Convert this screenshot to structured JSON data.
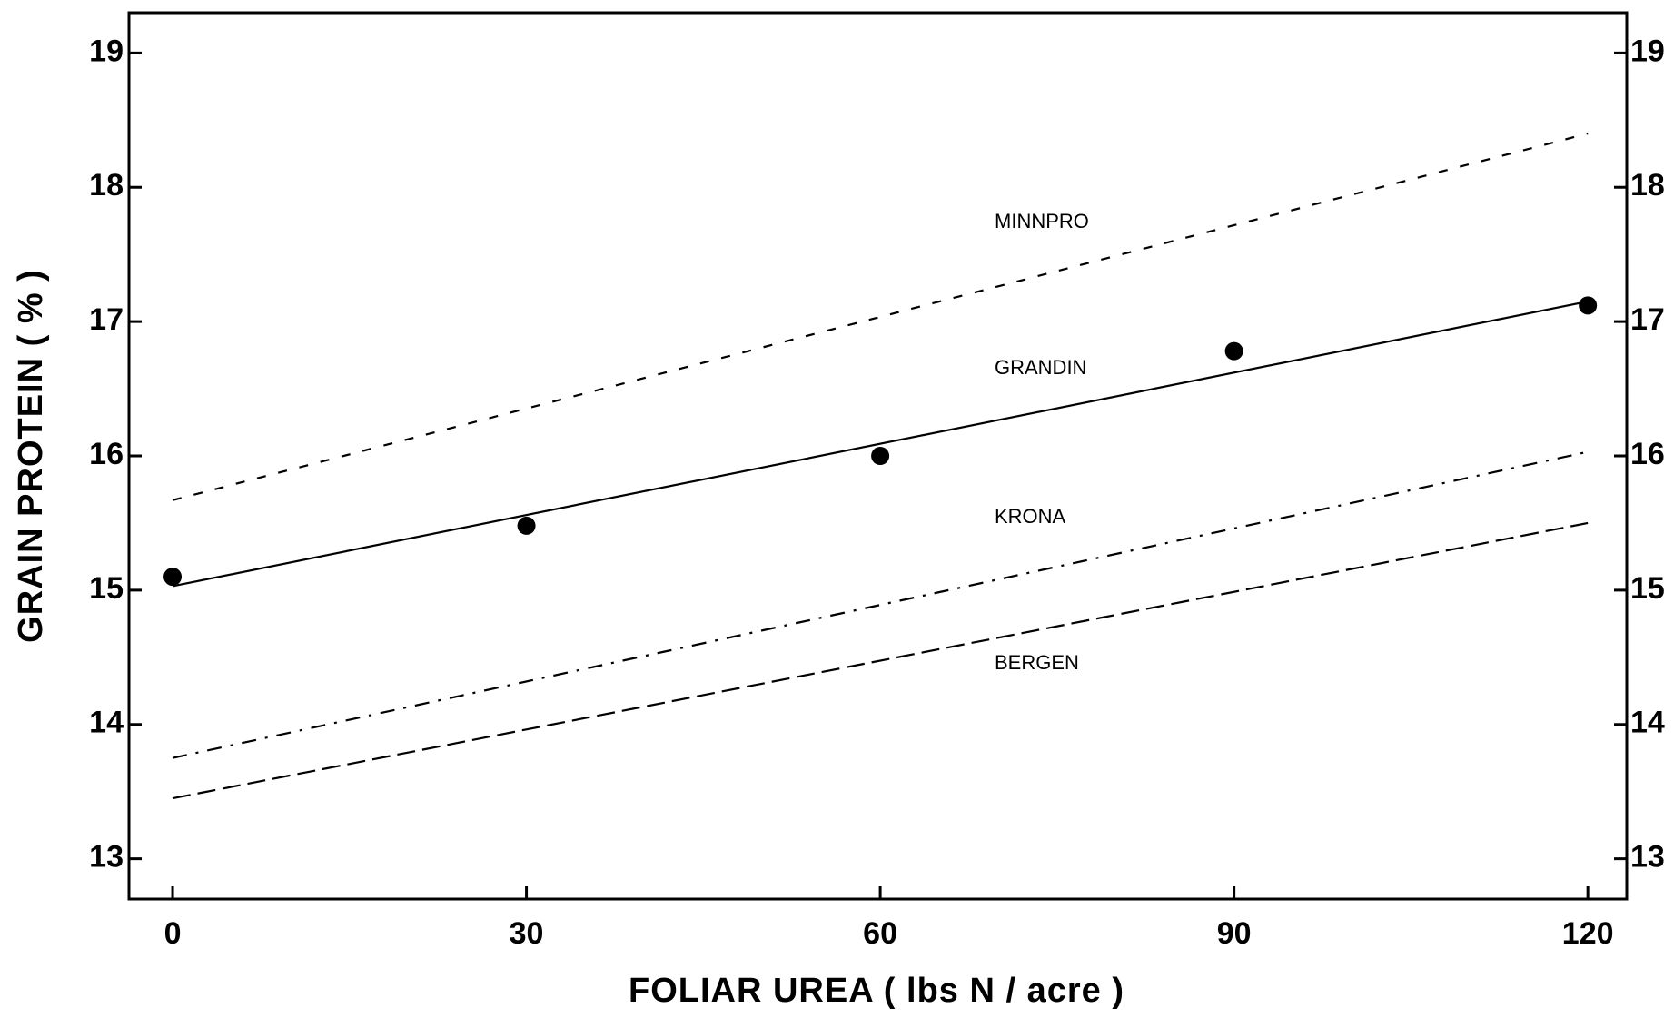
{
  "chart_data": {
    "type": "line",
    "x_label": "FOLIAR UREA ( lbs N / acre )",
    "y_label": "GRAIN PROTEIN ( % )",
    "xlim": [
      -3.7,
      123.3
    ],
    "xticks": [
      0,
      30,
      60,
      90,
      120
    ],
    "ylim": [
      12.7,
      19.3
    ],
    "yticks": [
      13,
      14,
      15,
      16,
      17,
      18,
      19
    ],
    "y2lim": [
      12.7,
      19.3
    ],
    "y2ticks": [
      13,
      14,
      15,
      16,
      17,
      18,
      19
    ],
    "series": [
      {
        "name": "MINNPRO",
        "color": "#000000",
        "dash": "dashed",
        "x": [
          0,
          120
        ],
        "values": [
          15.67,
          18.4
        ]
      },
      {
        "name": "GRANDIN",
        "color": "#000000",
        "dash": "solid",
        "x": [
          0,
          120
        ],
        "values": [
          15.03,
          17.15
        ]
      },
      {
        "name": "KRONA",
        "color": "#000000",
        "dash": "dashdot",
        "x": [
          0,
          120
        ],
        "values": [
          13.75,
          16.03
        ]
      },
      {
        "name": "BERGEN",
        "color": "#000000",
        "dash": "longdash",
        "x": [
          0,
          120
        ],
        "values": [
          13.45,
          15.5
        ]
      }
    ],
    "points": {
      "color": "#000000",
      "x": [
        0,
        30,
        60,
        90,
        120
      ],
      "values": [
        15.1,
        15.48,
        16.0,
        16.78,
        17.12
      ]
    }
  }
}
